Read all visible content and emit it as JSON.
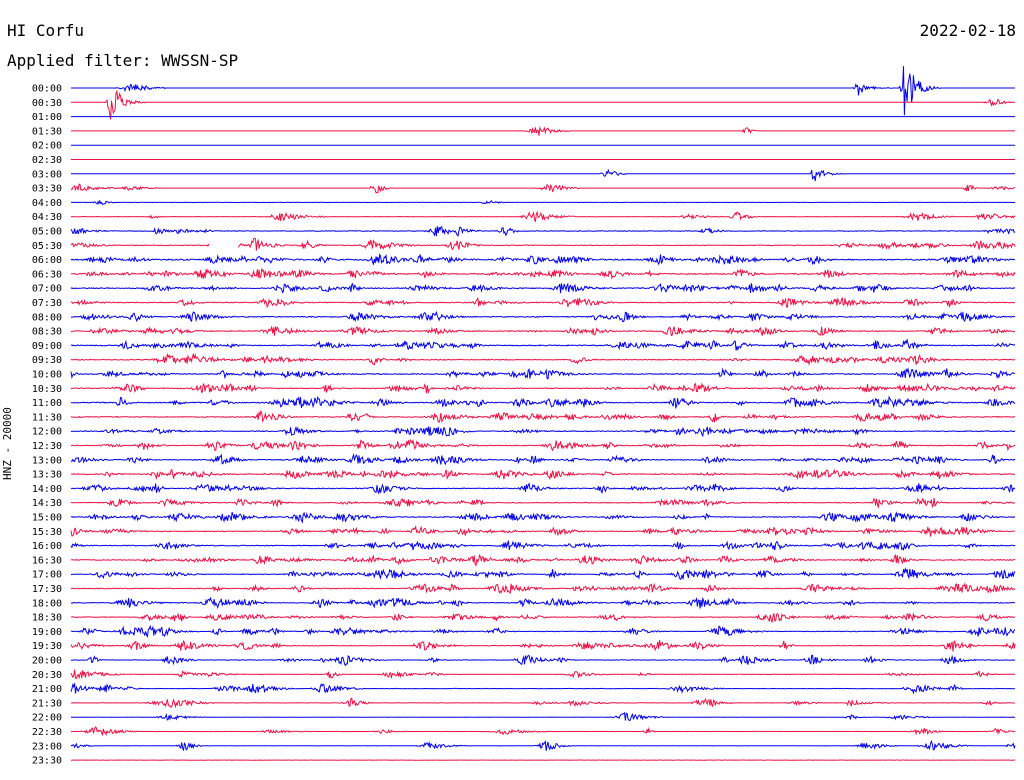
{
  "header": {
    "station": "HI Corfu",
    "date": "2022-02-18",
    "filter": "Applied filter: WWSSN-SP"
  },
  "axis": {
    "ylabel": "HNZ - 20000"
  },
  "colors": {
    "blue": "#0000ee",
    "red": "#ee1144"
  },
  "chart_data": {
    "type": "line",
    "title": "HI Corfu",
    "subtitle": "Applied filter: WWSSN-SP",
    "ylabel": "HNZ - 20000",
    "trace_start_times": [
      "00:00",
      "00:30",
      "01:00",
      "01:30",
      "02:00",
      "02:30",
      "03:00",
      "03:30",
      "04:00",
      "04:30",
      "05:00",
      "05:30",
      "06:00",
      "06:30",
      "07:00",
      "07:30",
      "08:00",
      "08:30",
      "09:00",
      "09:30",
      "10:00",
      "10:30",
      "11:00",
      "11:30",
      "12:00",
      "12:30",
      "13:00",
      "13:30",
      "14:00",
      "14:30",
      "15:00",
      "15:30",
      "16:00",
      "16:30",
      "17:00",
      "17:30",
      "18:00",
      "18:30",
      "19:00",
      "19:30",
      "20:00",
      "20:30",
      "21:00",
      "21:30",
      "22:00",
      "22:30",
      "23:00",
      "23:30"
    ],
    "trace_colors": [
      "blue",
      "red"
    ],
    "noise_level": [
      0.02,
      0.02,
      0.02,
      0.02,
      0.01,
      0.01,
      0.05,
      0.05,
      0.1,
      0.2,
      0.3,
      0.35,
      0.6,
      0.5,
      0.45,
      0.4,
      0.45,
      0.4,
      0.45,
      0.4,
      0.45,
      0.4,
      0.45,
      0.4,
      0.4,
      0.35,
      0.4,
      0.45,
      0.4,
      0.35,
      0.4,
      0.35,
      0.4,
      0.4,
      0.35,
      0.35,
      0.35,
      0.3,
      0.3,
      0.3,
      0.25,
      0.2,
      0.2,
      0.15,
      0.1,
      0.1,
      0.1,
      0.15
    ],
    "event_rate": [
      0.3,
      0.2,
      0,
      0.5,
      0,
      0,
      0.3,
      1.8,
      0.5,
      2,
      3,
      5,
      10,
      8,
      5,
      5,
      6,
      6,
      7,
      6,
      7,
      8,
      8,
      8,
      8,
      7,
      8,
      8,
      7,
      6,
      7,
      7,
      8,
      8,
      8,
      6,
      7,
      6,
      7,
      6,
      4,
      3,
      3,
      3,
      1,
      2,
      2,
      0
    ],
    "events": [
      {
        "trace": "00:00",
        "minute": 26.5,
        "amplitude": 32
      },
      {
        "trace": "00:00",
        "minute": 25.0,
        "amplitude": 8
      },
      {
        "trace": "00:30",
        "minute": 1.3,
        "amplitude": 22
      },
      {
        "trace": "03:00",
        "minute": 23.6,
        "amplitude": 8
      },
      {
        "trace": "05:30",
        "minute": 5.8,
        "amplitude": 10
      }
    ],
    "gaps": [
      {
        "trace": "05:30",
        "start_minute": 4.4,
        "end_minute": 5.3
      }
    ],
    "ylim_minutes": [
      0,
      30
    ],
    "grid": false,
    "legend": "none"
  }
}
